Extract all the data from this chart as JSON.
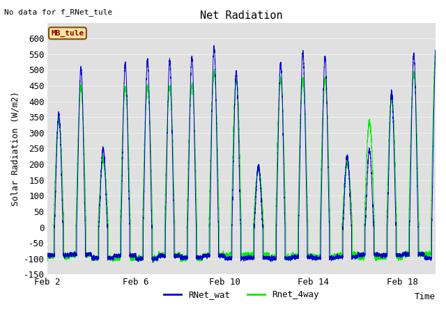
{
  "title": "Net Radiation",
  "xlabel": "Time",
  "ylabel": "Solar Radiation (W/m2)",
  "top_left_text": "No data for f_RNet_tule",
  "legend_label_text": "MB_tule",
  "series1_label": "RNet_wat",
  "series2_label": "Rnet_4way",
  "series1_color": "#0000cc",
  "series2_color": "#00ee00",
  "ylim": [
    -150,
    650
  ],
  "yticks": [
    -150,
    -100,
    -50,
    0,
    50,
    100,
    150,
    200,
    250,
    300,
    350,
    400,
    450,
    500,
    550,
    600
  ],
  "xtick_positions": [
    0,
    4,
    8,
    12,
    16
  ],
  "xtick_labels": [
    "Feb 2",
    "Feb 6",
    "Feb 10",
    "Feb 14",
    "Feb 18"
  ],
  "plot_bg_color": "#e0e0e0",
  "grid_color": "#f0f0f0",
  "title_fontsize": 11,
  "label_fontsize": 9,
  "tick_fontsize": 9,
  "n_points": 8640,
  "total_days": 17.5
}
